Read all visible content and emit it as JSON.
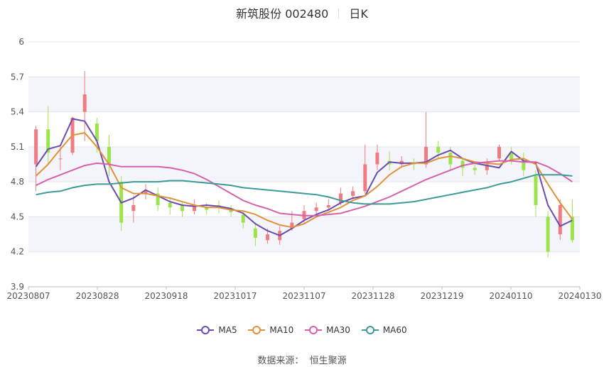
{
  "header": {
    "stock": "新筑股份 002480",
    "period": "日K"
  },
  "footer": {
    "source_label": "数据来源：",
    "source_name": "恒生聚源"
  },
  "colors": {
    "up": "#f07c82",
    "down": "#9be54b",
    "ma5": "#6a4bb0",
    "ma10": "#e0913a",
    "ma30": "#d760aa",
    "ma60": "#3c9a98"
  },
  "chart_data": {
    "type": "candlestick",
    "ylim": [
      3.9,
      6.0
    ],
    "y_ticks": [
      "3.9",
      "4.2",
      "4.5",
      "4.8",
      "5.1",
      "5.4",
      "5.7",
      "6"
    ],
    "x_ticks": [
      "20230807",
      "20230828",
      "20230918",
      "20231017",
      "20231107",
      "20231128",
      "20231219",
      "20240110",
      "20240130"
    ],
    "grid": true,
    "legend_position": "bottom",
    "series": [
      {
        "name": "MA5",
        "color": "#6a4bb0",
        "values": [
          4.93,
          5.08,
          5.11,
          5.34,
          5.32,
          5.15,
          4.8,
          4.62,
          4.66,
          4.73,
          4.68,
          4.63,
          4.6,
          4.59,
          4.6,
          4.59,
          4.57,
          4.53,
          4.44,
          4.38,
          4.34,
          4.4,
          4.47,
          4.52,
          4.56,
          4.62,
          4.66,
          4.68,
          4.88,
          4.97,
          4.96,
          4.96,
          4.97,
          5.03,
          5.07,
          5.0,
          4.96,
          4.94,
          4.92,
          5.06,
          4.98,
          4.96,
          4.6,
          4.42,
          4.47
        ]
      },
      {
        "name": "MA10",
        "color": "#e0913a",
        "values": [
          4.85,
          4.95,
          5.08,
          5.2,
          5.22,
          5.1,
          4.95,
          4.75,
          4.7,
          4.7,
          4.68,
          4.66,
          4.63,
          4.6,
          4.58,
          4.58,
          4.56,
          4.55,
          4.52,
          4.47,
          4.43,
          4.41,
          4.44,
          4.5,
          4.54,
          4.58,
          4.64,
          4.68,
          4.76,
          4.86,
          4.93,
          4.96,
          4.96,
          5.0,
          5.02,
          5.0,
          4.97,
          4.96,
          4.95,
          4.99,
          5.0,
          4.95,
          4.78,
          4.62,
          4.48
        ]
      },
      {
        "name": "MA30",
        "color": "#d760aa",
        "values": [
          4.77,
          4.82,
          4.86,
          4.9,
          4.94,
          4.96,
          4.95,
          4.93,
          4.93,
          4.93,
          4.93,
          4.92,
          4.9,
          4.87,
          4.82,
          4.76,
          4.7,
          4.64,
          4.6,
          4.57,
          4.53,
          4.52,
          4.51,
          4.51,
          4.52,
          4.53,
          4.56,
          4.59,
          4.63,
          4.67,
          4.72,
          4.77,
          4.82,
          4.86,
          4.9,
          4.94,
          4.96,
          4.97,
          4.98,
          4.98,
          4.97,
          4.97,
          4.93,
          4.87,
          4.8
        ]
      },
      {
        "name": "MA60",
        "color": "#3c9a98",
        "values": [
          4.69,
          4.71,
          4.72,
          4.75,
          4.77,
          4.78,
          4.78,
          4.79,
          4.8,
          4.8,
          4.8,
          4.81,
          4.81,
          4.8,
          4.79,
          4.78,
          4.77,
          4.75,
          4.74,
          4.73,
          4.72,
          4.71,
          4.7,
          4.69,
          4.67,
          4.64,
          4.62,
          4.61,
          4.61,
          4.61,
          4.62,
          4.63,
          4.65,
          4.67,
          4.69,
          4.71,
          4.73,
          4.75,
          4.78,
          4.8,
          4.83,
          4.86,
          4.86,
          4.86,
          4.85
        ]
      }
    ],
    "candles": [
      [
        4.95,
        5.25,
        5.28,
        4.72
      ],
      [
        5.25,
        5.05,
        5.45,
        4.95
      ],
      [
        5.0,
        5.0,
        5.1,
        4.9
      ],
      [
        5.05,
        5.35,
        5.36,
        5.03
      ],
      [
        5.4,
        5.55,
        5.75,
        5.15
      ],
      [
        5.3,
        5.15,
        5.35,
        5.05
      ],
      [
        5.1,
        4.95,
        5.2,
        4.85
      ],
      [
        4.8,
        4.45,
        4.85,
        4.38
      ],
      [
        4.55,
        4.6,
        4.68,
        4.45
      ],
      [
        4.7,
        4.72,
        4.78,
        4.65
      ],
      [
        4.7,
        4.6,
        4.75,
        4.55
      ],
      [
        4.62,
        4.58,
        4.66,
        4.52
      ],
      [
        4.6,
        4.55,
        4.63,
        4.5
      ],
      [
        4.55,
        4.6,
        4.65,
        4.52
      ],
      [
        4.58,
        4.56,
        4.62,
        4.52
      ],
      [
        4.6,
        4.58,
        4.64,
        4.53
      ],
      [
        4.56,
        4.54,
        4.6,
        4.5
      ],
      [
        4.52,
        4.45,
        4.55,
        4.4
      ],
      [
        4.4,
        4.32,
        4.45,
        4.25
      ],
      [
        4.3,
        4.35,
        4.4,
        4.27
      ],
      [
        4.3,
        4.38,
        4.42,
        4.26
      ],
      [
        4.4,
        4.45,
        4.55,
        4.38
      ],
      [
        4.48,
        4.55,
        4.6,
        4.45
      ],
      [
        4.55,
        4.58,
        4.62,
        4.52
      ],
      [
        4.58,
        4.6,
        4.65,
        4.55
      ],
      [
        4.62,
        4.7,
        4.75,
        4.6
      ],
      [
        4.68,
        4.72,
        4.76,
        4.65
      ],
      [
        4.72,
        4.95,
        5.12,
        4.7
      ],
      [
        4.95,
        5.05,
        5.12,
        4.9
      ],
      [
        4.98,
        4.95,
        5.06,
        4.9
      ],
      [
        4.95,
        4.98,
        5.02,
        4.92
      ],
      [
        4.96,
        4.95,
        5.0,
        4.9
      ],
      [
        4.95,
        5.1,
        5.4,
        4.92
      ],
      [
        5.1,
        5.05,
        5.15,
        5.0
      ],
      [
        5.05,
        4.95,
        5.1,
        4.9
      ],
      [
        4.98,
        4.92,
        5.0,
        4.85
      ],
      [
        4.92,
        4.9,
        4.96,
        4.86
      ],
      [
        4.9,
        4.95,
        5.0,
        4.86
      ],
      [
        5.0,
        5.1,
        5.12,
        4.98
      ],
      [
        5.05,
        4.98,
        5.1,
        4.95
      ],
      [
        4.98,
        4.9,
        5.05,
        4.85
      ],
      [
        4.85,
        4.6,
        4.9,
        4.5
      ],
      [
        4.5,
        4.2,
        4.55,
        4.15
      ],
      [
        4.35,
        4.6,
        4.65,
        4.3
      ],
      [
        4.5,
        4.3,
        4.65,
        4.28
      ]
    ]
  }
}
